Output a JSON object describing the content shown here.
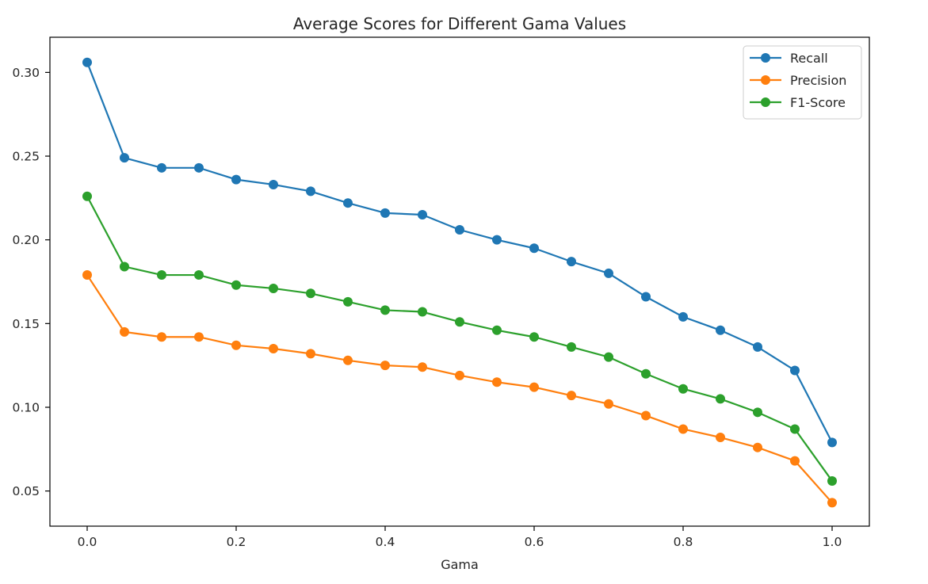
{
  "chart_data": {
    "type": "line",
    "title": "Average Scores for Different Gama Values",
    "xlabel": "Gama",
    "ylabel": "",
    "x": [
      0.0,
      0.05,
      0.1,
      0.15,
      0.2,
      0.25,
      0.3,
      0.35,
      0.4,
      0.45,
      0.5,
      0.55,
      0.6,
      0.65,
      0.7,
      0.75,
      0.8,
      0.85,
      0.9,
      0.95,
      1.0
    ],
    "xlim": [
      -0.05,
      1.05
    ],
    "ylim": [
      0.029,
      0.321
    ],
    "xticks": [
      0.0,
      0.2,
      0.4,
      0.6,
      0.8,
      1.0
    ],
    "xtick_labels": [
      "0.0",
      "0.2",
      "0.4",
      "0.6",
      "0.8",
      "1.0"
    ],
    "yticks": [
      0.05,
      0.1,
      0.15,
      0.2,
      0.25,
      0.3
    ],
    "ytick_labels": [
      "0.05",
      "0.10",
      "0.15",
      "0.20",
      "0.25",
      "0.30"
    ],
    "grid": false,
    "legend_position": "top-right",
    "series": [
      {
        "name": "Recall",
        "color": "#1f77b4",
        "values": [
          0.306,
          0.249,
          0.243,
          0.243,
          0.236,
          0.233,
          0.229,
          0.222,
          0.216,
          0.215,
          0.206,
          0.2,
          0.195,
          0.187,
          0.18,
          0.166,
          0.154,
          0.146,
          0.136,
          0.122,
          0.079
        ]
      },
      {
        "name": "Precision",
        "color": "#ff7f0e",
        "values": [
          0.179,
          0.145,
          0.142,
          0.142,
          0.137,
          0.135,
          0.132,
          0.128,
          0.125,
          0.124,
          0.119,
          0.115,
          0.112,
          0.107,
          0.102,
          0.095,
          0.087,
          0.082,
          0.076,
          0.068,
          0.043
        ]
      },
      {
        "name": "F1-Score",
        "color": "#2ca02c",
        "values": [
          0.226,
          0.184,
          0.179,
          0.179,
          0.173,
          0.171,
          0.168,
          0.163,
          0.158,
          0.157,
          0.151,
          0.146,
          0.142,
          0.136,
          0.13,
          0.12,
          0.111,
          0.105,
          0.097,
          0.087,
          0.056
        ]
      }
    ]
  }
}
